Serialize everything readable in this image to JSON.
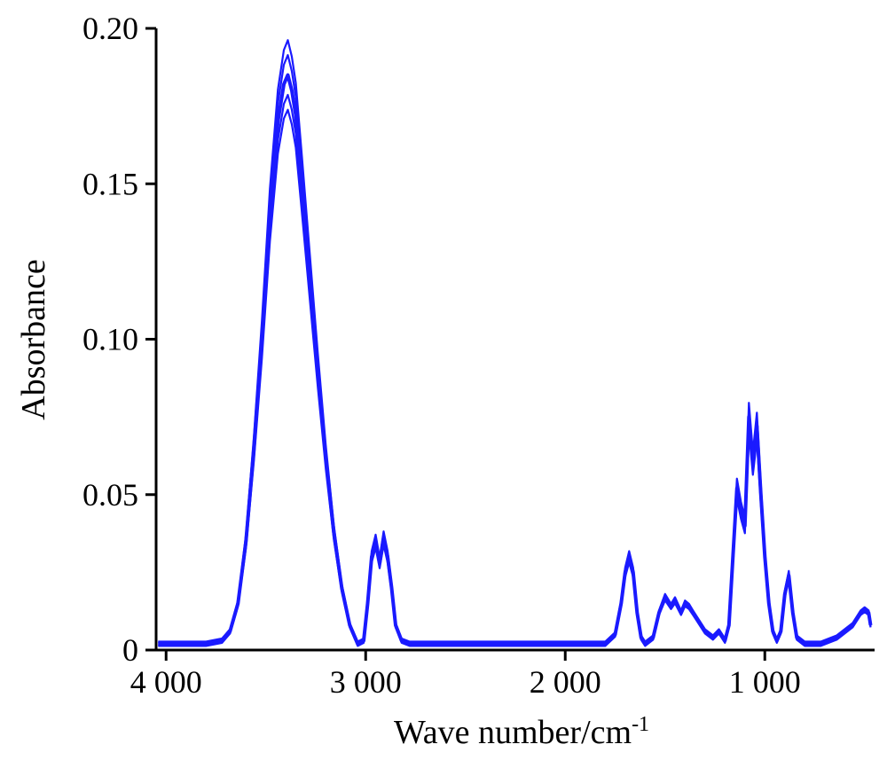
{
  "chart_data": {
    "type": "line",
    "title": "",
    "xlabel": "Wave number/cm",
    "xlabel_superscript": "-1",
    "ylabel": "Absorbance",
    "x_reversed": true,
    "xlim": [
      4050,
      450
    ],
    "ylim": [
      0,
      0.2
    ],
    "x_ticks": [
      {
        "value": 4000,
        "label": "4 000"
      },
      {
        "value": 3000,
        "label": "3 000"
      },
      {
        "value": 2000,
        "label": "2 000"
      },
      {
        "value": 1000,
        "label": "1 000"
      }
    ],
    "y_ticks": [
      {
        "value": 0,
        "label": "0"
      },
      {
        "value": 0.05,
        "label": "0.05"
      },
      {
        "value": 0.1,
        "label": "0.10"
      },
      {
        "value": 0.15,
        "label": "0.15"
      },
      {
        "value": 0.2,
        "label": "0.20"
      }
    ],
    "grid": false,
    "series_color": "#1a1aff",
    "series": [
      {
        "x": [
          4040,
          3900,
          3800,
          3720,
          3680,
          3640,
          3600,
          3560,
          3520,
          3480,
          3440,
          3410,
          3390,
          3370,
          3350,
          3320,
          3280,
          3240,
          3200,
          3160,
          3120,
          3080,
          3040,
          3010,
          2990,
          2970,
          2950,
          2930,
          2910,
          2890,
          2870,
          2850,
          2820,
          2780,
          2600,
          2400,
          2200,
          2000,
          1900,
          1800,
          1750,
          1720,
          1700,
          1680,
          1660,
          1640,
          1620,
          1600,
          1560,
          1530,
          1500,
          1470,
          1450,
          1420,
          1400,
          1380,
          1360,
          1340,
          1300,
          1260,
          1230,
          1200,
          1180,
          1160,
          1140,
          1120,
          1100,
          1080,
          1060,
          1040,
          1020,
          1000,
          980,
          960,
          940,
          920,
          900,
          880,
          860,
          840,
          800,
          760,
          720,
          680,
          640,
          600,
          560,
          540,
          520,
          500,
          480,
          470
        ],
        "y": [
          0.002,
          0.002,
          0.002,
          0.003,
          0.006,
          0.015,
          0.035,
          0.065,
          0.1,
          0.14,
          0.17,
          0.182,
          0.185,
          0.18,
          0.172,
          0.15,
          0.12,
          0.09,
          0.062,
          0.038,
          0.02,
          0.008,
          0.002,
          0.003,
          0.015,
          0.03,
          0.035,
          0.028,
          0.036,
          0.03,
          0.02,
          0.008,
          0.003,
          0.002,
          0.002,
          0.002,
          0.002,
          0.002,
          0.002,
          0.002,
          0.005,
          0.015,
          0.025,
          0.03,
          0.025,
          0.012,
          0.004,
          0.002,
          0.004,
          0.012,
          0.017,
          0.014,
          0.016,
          0.012,
          0.015,
          0.014,
          0.012,
          0.01,
          0.006,
          0.004,
          0.006,
          0.003,
          0.008,
          0.03,
          0.052,
          0.045,
          0.04,
          0.075,
          0.06,
          0.072,
          0.05,
          0.03,
          0.015,
          0.006,
          0.003,
          0.006,
          0.018,
          0.024,
          0.012,
          0.004,
          0.002,
          0.002,
          0.002,
          0.003,
          0.004,
          0.006,
          0.008,
          0.01,
          0.012,
          0.013,
          0.012,
          0.008
        ]
      }
    ]
  }
}
